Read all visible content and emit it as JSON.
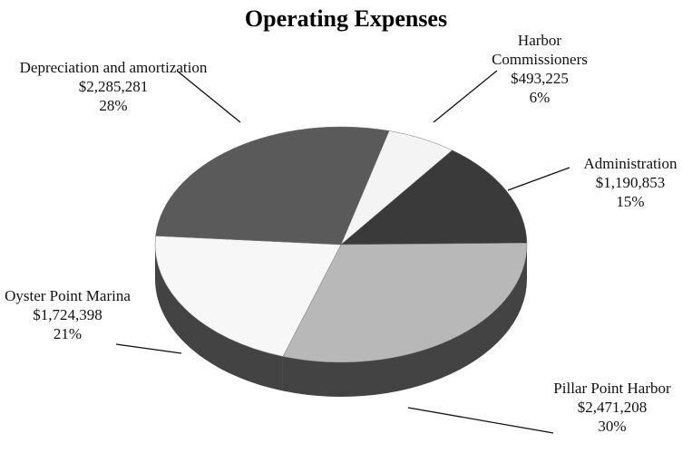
{
  "chart_data": {
    "type": "pie",
    "title": "Operating Expenses",
    "categories": [
      "Harbor Commissioners",
      "Administration",
      "Pillar Point Harbor",
      "Oyster Point Marina",
      "Depreciation and amortization"
    ],
    "values": [
      493225,
      1190853,
      2471208,
      1724398,
      2285281
    ],
    "value_labels": [
      "$493,225",
      "$1,190,853",
      "$2,471,208",
      "$1,724,398",
      "$2,285,281"
    ],
    "percents": [
      6,
      15,
      30,
      21,
      28
    ],
    "percent_labels": [
      "6%",
      "15%",
      "30%",
      "21%",
      "28%"
    ],
    "colors": [
      "#f4f4f4",
      "#3a3a3a",
      "#b8b8b8",
      "#f7f7f7",
      "#5a5a5a"
    ]
  }
}
